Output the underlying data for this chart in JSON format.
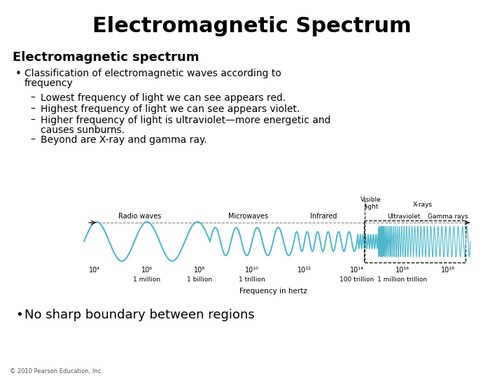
{
  "title": "Electromagnetic Spectrum",
  "subtitle": "Electromagnetic spectrum",
  "bullet1_line1": "Classification of electromagnetic waves according to",
  "bullet1_line2": "frequency",
  "sub_bullets": [
    "Lowest frequency of light we can see appears red.",
    "Highest frequency of light we can see appears violet.",
    "Higher frequency of light is ultraviolet—more energetic and",
    "causes sunburns.",
    "Beyond are X-ray and gamma ray."
  ],
  "sub_bullet_dashes": [
    true,
    true,
    true,
    false,
    true
  ],
  "bullet2": "No sharp boundary between regions",
  "copyright": "© 2010 Pearson Education, Inc.",
  "background_color": "#ffffff",
  "text_color": "#000000",
  "wave_color": "#4db8cc",
  "title_fontsize": 22,
  "subtitle_fontsize": 13,
  "body_fontsize": 10,
  "bullet2_fontsize": 13,
  "freq_xlabel": "Frequency in hertz"
}
